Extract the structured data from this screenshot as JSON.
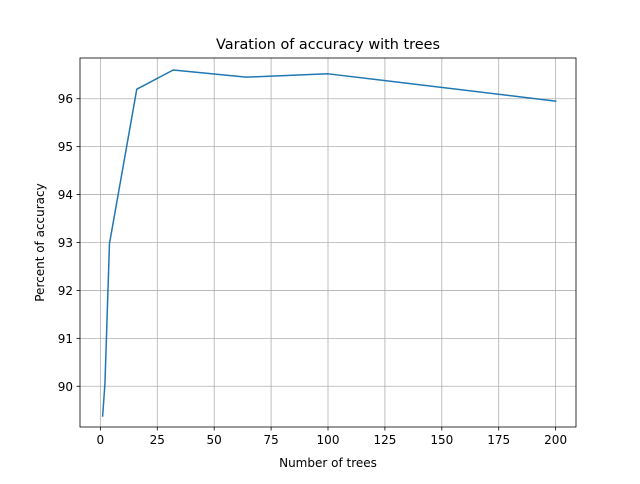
{
  "chart_data": {
    "type": "line",
    "title": "Varation of accuracy with trees",
    "xlabel": "Number of trees",
    "ylabel": "Percent of accuracy",
    "xlim": [
      -8.95,
      208.95
    ],
    "ylim": [
      89.15,
      96.85
    ],
    "xticks": [
      0,
      25,
      50,
      75,
      100,
      125,
      150,
      175,
      200
    ],
    "yticks": [
      90,
      91,
      92,
      93,
      94,
      95,
      96
    ],
    "grid": true,
    "series": [
      {
        "color": "#1f77b4",
        "x": [
          1,
          2,
          4,
          8,
          16,
          32,
          64,
          100,
          200
        ],
        "y": [
          89.38,
          90.05,
          92.98,
          94.05,
          96.2,
          96.6,
          96.45,
          96.52,
          95.95
        ]
      }
    ]
  }
}
